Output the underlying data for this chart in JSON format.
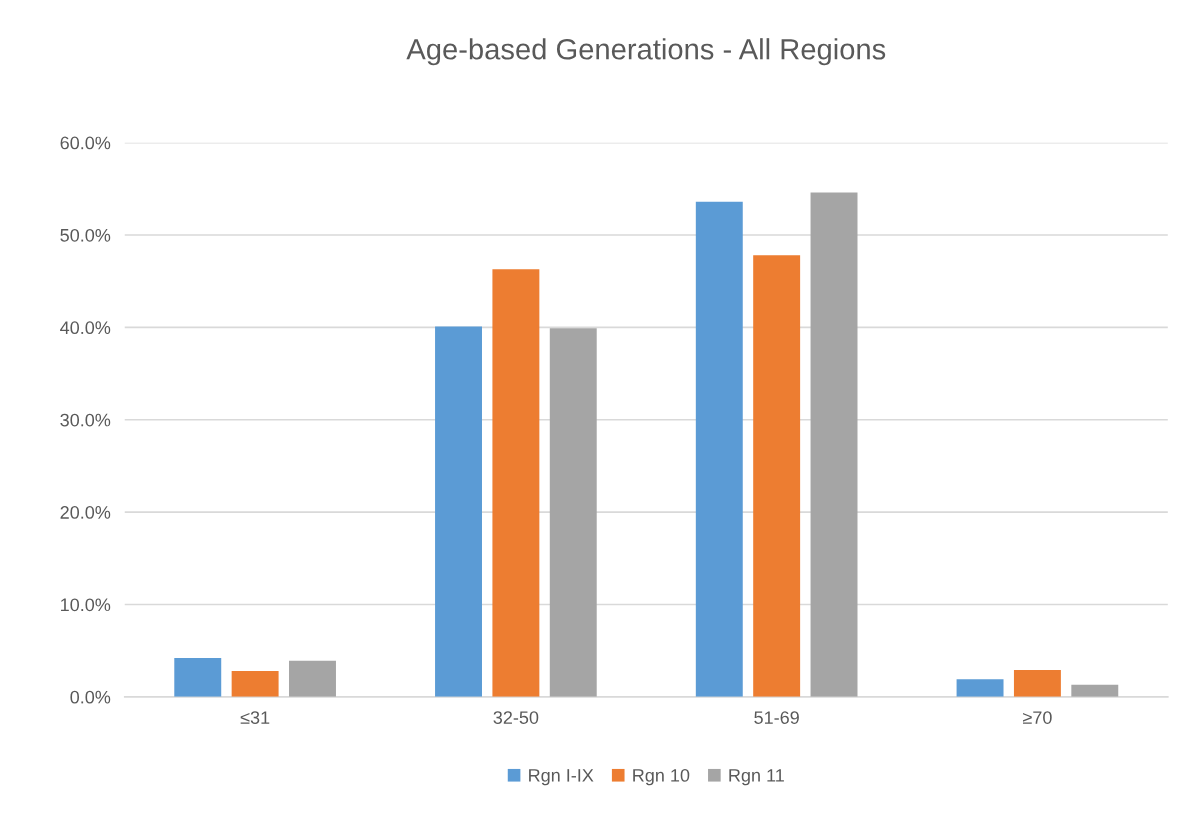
{
  "chart_data": {
    "type": "bar",
    "title": "Age-based Generations - All Regions",
    "categories": [
      "≤31",
      "32-50",
      "51-69",
      "≥70"
    ],
    "series": [
      {
        "name": "Rgn I-IX",
        "color": "#5b9bd5",
        "values": [
          4.2,
          40.1,
          53.6,
          1.9
        ]
      },
      {
        "name": "Rgn 10",
        "color": "#ed7d31",
        "values": [
          2.8,
          46.3,
          47.8,
          2.9
        ]
      },
      {
        "name": "Rgn 11",
        "color": "#a5a5a5",
        "values": [
          3.9,
          39.9,
          54.6,
          1.3
        ]
      }
    ],
    "ylim": [
      0,
      60
    ],
    "yticks": [
      {
        "value": 0,
        "label": "0.0%"
      },
      {
        "value": 10,
        "label": "10.0%"
      },
      {
        "value": 20,
        "label": "20.0%"
      },
      {
        "value": 30,
        "label": "30.0%"
      },
      {
        "value": 40,
        "label": "40.0%"
      },
      {
        "value": 50,
        "label": "50.0%"
      },
      {
        "value": 60,
        "label": "60.0%"
      }
    ],
    "grid": "y",
    "legend": "bottom"
  }
}
